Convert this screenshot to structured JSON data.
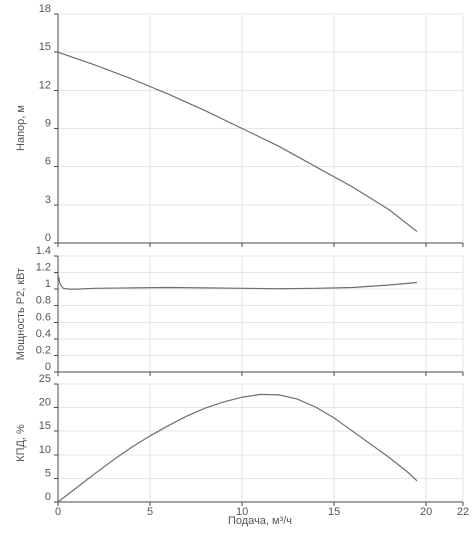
{
  "chart_data": [
    {
      "type": "line",
      "ylabel": "Напор, м",
      "xlim": [
        0,
        22
      ],
      "ylim": [
        0,
        18
      ],
      "y_ticks": [
        0,
        3,
        6,
        9,
        12,
        15,
        18
      ],
      "grid": true,
      "series": [
        {
          "x": [
            0,
            2,
            4,
            6,
            8,
            10,
            12,
            14,
            16,
            18,
            19.5
          ],
          "y": [
            15.0,
            14.0,
            12.9,
            11.7,
            10.4,
            9.0,
            7.6,
            6.0,
            4.4,
            2.6,
            0.9
          ]
        }
      ]
    },
    {
      "type": "line",
      "ylabel": "Мощность P2, кВт",
      "xlim": [
        0,
        22
      ],
      "ylim": [
        0,
        1.4
      ],
      "y_ticks": [
        0,
        0.2,
        0.4,
        0.6,
        0.8,
        1,
        1.2,
        1.4
      ],
      "grid": true,
      "series": [
        {
          "x": [
            0,
            0.05,
            0.1,
            0.2,
            0.3,
            0.6,
            1,
            2,
            4,
            6,
            8,
            10,
            12,
            14,
            16,
            18,
            19.5
          ],
          "y": [
            1.17,
            1.13,
            1.07,
            1.03,
            1.01,
            1.0,
            1.0,
            1.01,
            1.015,
            1.02,
            1.015,
            1.01,
            1.005,
            1.01,
            1.02,
            1.05,
            1.08
          ]
        }
      ]
    },
    {
      "type": "line",
      "ylabel": "КПД, %",
      "xlabel": "Подача, м³/ч",
      "xlim": [
        0,
        22
      ],
      "ylim": [
        0,
        25
      ],
      "x_ticks": [
        0,
        5,
        10,
        15,
        20,
        22
      ],
      "y_ticks": [
        0,
        5,
        10,
        15,
        20,
        25
      ],
      "grid": true,
      "series": [
        {
          "x": [
            0,
            1,
            2,
            3,
            4,
            5,
            6,
            7,
            8,
            9,
            10,
            11,
            12,
            13,
            14,
            15,
            16,
            17,
            18,
            19,
            19.5
          ],
          "y": [
            0,
            3.0,
            6.0,
            8.9,
            11.6,
            14.0,
            16.2,
            18.2,
            19.9,
            21.2,
            22.2,
            22.8,
            22.7,
            21.8,
            20.1,
            17.8,
            15.0,
            12.2,
            9.4,
            6.3,
            4.5
          ]
        }
      ]
    }
  ]
}
